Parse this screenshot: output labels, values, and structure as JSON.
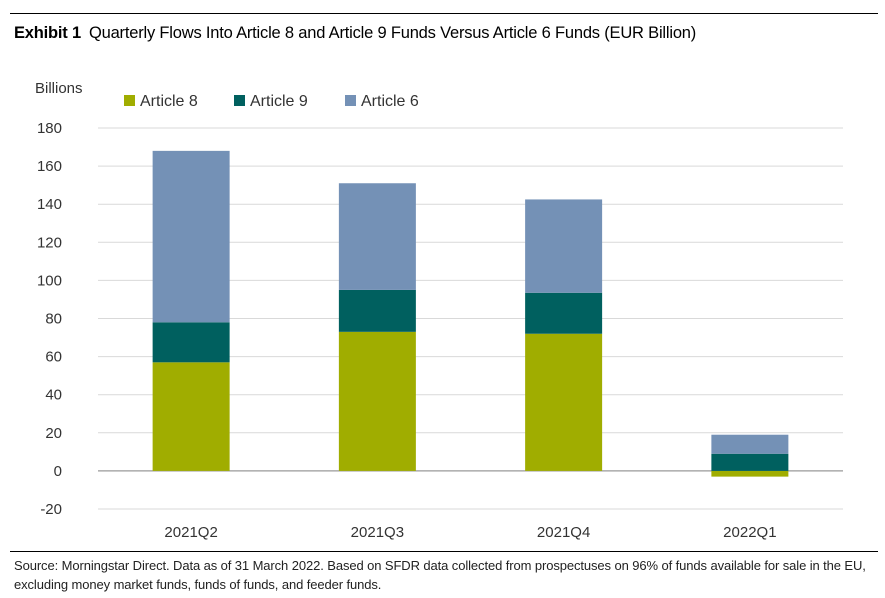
{
  "header": {
    "exhibit_label": "Exhibit 1",
    "title": "Quarterly Flows Into Article 8 and Article 9 Funds Versus Article 6 Funds (EUR Billion)"
  },
  "footer": {
    "source": "Source: Morningstar Direct. Data as of 31 March 2022. Based on SFDR data collected from prospectuses on 96% of funds available for sale in the EU, excluding money market funds, funds of funds, and feeder funds."
  },
  "chart_data": {
    "type": "bar",
    "stacked": true,
    "title": "Quarterly Flows Into Article 8 and Article 9 Funds Versus Article 6 Funds (EUR Billion)",
    "ylabel": "Billions",
    "xlabel": "",
    "categories": [
      "2021Q2",
      "2021Q3",
      "2021Q4",
      "2022Q1"
    ],
    "ylim": [
      -20,
      180
    ],
    "yticks": [
      180,
      160,
      140,
      120,
      100,
      80,
      60,
      40,
      20,
      0,
      -20
    ],
    "grid": true,
    "legend_position": "top-left",
    "series": [
      {
        "name": "Article 8",
        "color": "#a0ad00",
        "values": [
          57,
          73,
          72,
          -3
        ]
      },
      {
        "name": "Article 9",
        "color": "#00605f",
        "values": [
          21,
          22,
          21.5,
          9
        ]
      },
      {
        "name": "Article 6",
        "color": "#7491b6",
        "values": [
          90,
          56,
          49,
          10
        ]
      }
    ]
  }
}
